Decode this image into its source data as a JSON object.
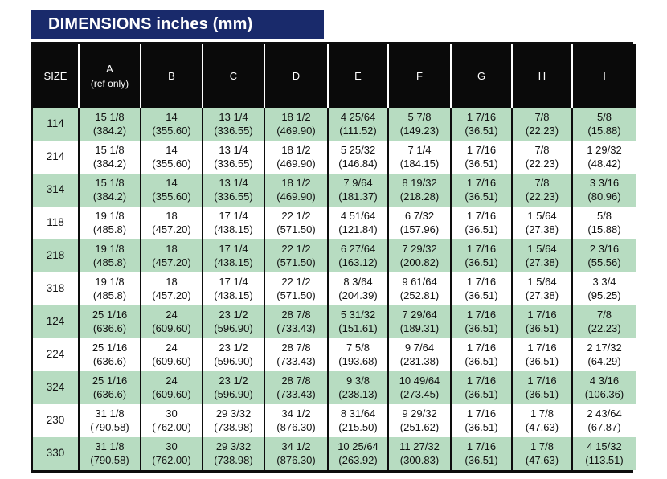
{
  "title": "DIMENSIONS inches (mm)",
  "colors": {
    "title_bar_bg": "#192a6b",
    "title_text": "#ffffff",
    "header_bg": "#0a0a0a",
    "header_text": "#ffffff",
    "row_green": "#b7dcc1",
    "row_white": "#ffffff",
    "border": "#0d0d0d"
  },
  "table": {
    "size_header": "SIZE",
    "columns": [
      {
        "label": "A",
        "sub": "(ref only)"
      },
      {
        "label": "B"
      },
      {
        "label": "C"
      },
      {
        "label": "D"
      },
      {
        "label": "E"
      },
      {
        "label": "F"
      },
      {
        "label": "G"
      },
      {
        "label": "H"
      },
      {
        "label": "I"
      }
    ],
    "rows": [
      {
        "size": "114",
        "shade": "green",
        "cells": [
          {
            "in": "15 1/8",
            "mm": "(384.2)"
          },
          {
            "in": "14",
            "mm": "(355.60)"
          },
          {
            "in": "13 1/4",
            "mm": "(336.55)"
          },
          {
            "in": "18 1/2",
            "mm": "(469.90)"
          },
          {
            "in": "4 25/64",
            "mm": "(111.52)"
          },
          {
            "in": "5 7/8",
            "mm": "(149.23)"
          },
          {
            "in": "1 7/16",
            "mm": "(36.51)"
          },
          {
            "in": "7/8",
            "mm": "(22.23)"
          },
          {
            "in": "5/8",
            "mm": "(15.88)"
          }
        ]
      },
      {
        "size": "214",
        "shade": "white",
        "cells": [
          {
            "in": "15 1/8",
            "mm": "(384.2)"
          },
          {
            "in": "14",
            "mm": "(355.60)"
          },
          {
            "in": "13 1/4",
            "mm": "(336.55)"
          },
          {
            "in": "18 1/2",
            "mm": "(469.90)"
          },
          {
            "in": "5 25/32",
            "mm": "(146.84)"
          },
          {
            "in": "7 1/4",
            "mm": "(184.15)"
          },
          {
            "in": "1 7/16",
            "mm": "(36.51)"
          },
          {
            "in": "7/8",
            "mm": "(22.23)"
          },
          {
            "in": "1 29/32",
            "mm": "(48.42)"
          }
        ]
      },
      {
        "size": "314",
        "shade": "green",
        "cells": [
          {
            "in": "15 1/8",
            "mm": "(384.2)"
          },
          {
            "in": "14",
            "mm": "(355.60)"
          },
          {
            "in": "13 1/4",
            "mm": "(336.55)"
          },
          {
            "in": "18 1/2",
            "mm": "(469.90)"
          },
          {
            "in": "7 9/64",
            "mm": "(181.37)"
          },
          {
            "in": "8 19/32",
            "mm": "(218.28)"
          },
          {
            "in": "1 7/16",
            "mm": "(36.51)"
          },
          {
            "in": "7/8",
            "mm": "(22.23)"
          },
          {
            "in": "3 3/16",
            "mm": "(80.96)"
          }
        ]
      },
      {
        "size": "118",
        "shade": "white",
        "cells": [
          {
            "in": "19 1/8",
            "mm": "(485.8)"
          },
          {
            "in": "18",
            "mm": "(457.20)"
          },
          {
            "in": "17 1/4",
            "mm": "(438.15)"
          },
          {
            "in": "22 1/2",
            "mm": "(571.50)"
          },
          {
            "in": "4 51/64",
            "mm": "(121.84)"
          },
          {
            "in": "6 7/32",
            "mm": "(157.96)"
          },
          {
            "in": "1 7/16",
            "mm": "(36.51)"
          },
          {
            "in": "1 5/64",
            "mm": "(27.38)"
          },
          {
            "in": "5/8",
            "mm": "(15.88)"
          }
        ]
      },
      {
        "size": "218",
        "shade": "green",
        "cells": [
          {
            "in": "19 1/8",
            "mm": "(485.8)"
          },
          {
            "in": "18",
            "mm": "(457.20)"
          },
          {
            "in": "17 1/4",
            "mm": "(438.15)"
          },
          {
            "in": "22 1/2",
            "mm": "(571.50)"
          },
          {
            "in": "6 27/64",
            "mm": "(163.12)"
          },
          {
            "in": "7 29/32",
            "mm": "(200.82)"
          },
          {
            "in": "1 7/16",
            "mm": "(36.51)"
          },
          {
            "in": "1 5/64",
            "mm": "(27.38)"
          },
          {
            "in": "2 3/16",
            "mm": "(55.56)"
          }
        ]
      },
      {
        "size": "318",
        "shade": "white",
        "cells": [
          {
            "in": "19 1/8",
            "mm": "(485.8)"
          },
          {
            "in": "18",
            "mm": "(457.20)"
          },
          {
            "in": "17 1/4",
            "mm": "(438.15)"
          },
          {
            "in": "22 1/2",
            "mm": "(571.50)"
          },
          {
            "in": "8 3/64",
            "mm": "(204.39)"
          },
          {
            "in": "9 61/64",
            "mm": "(252.81)"
          },
          {
            "in": "1 7/16",
            "mm": "(36.51)"
          },
          {
            "in": "1 5/64",
            "mm": "(27.38)"
          },
          {
            "in": "3 3/4",
            "mm": "(95.25)"
          }
        ]
      },
      {
        "size": "124",
        "shade": "green",
        "cells": [
          {
            "in": "25 1/16",
            "mm": "(636.6)"
          },
          {
            "in": "24",
            "mm": "(609.60)"
          },
          {
            "in": "23 1/2",
            "mm": "(596.90)"
          },
          {
            "in": "28 7/8",
            "mm": "(733.43)"
          },
          {
            "in": "5 31/32",
            "mm": "(151.61)"
          },
          {
            "in": "7 29/64",
            "mm": "(189.31)"
          },
          {
            "in": "1 7/16",
            "mm": "(36.51)"
          },
          {
            "in": "1 7/16",
            "mm": "(36.51)"
          },
          {
            "in": "7/8",
            "mm": "(22.23)"
          }
        ]
      },
      {
        "size": "224",
        "shade": "white",
        "cells": [
          {
            "in": "25 1/16",
            "mm": "(636.6)"
          },
          {
            "in": "24",
            "mm": "(609.60)"
          },
          {
            "in": "23 1/2",
            "mm": "(596.90)"
          },
          {
            "in": "28 7/8",
            "mm": "(733.43)"
          },
          {
            "in": "7 5/8",
            "mm": "(193.68)"
          },
          {
            "in": "9 7/64",
            "mm": "(231.38)"
          },
          {
            "in": "1 7/16",
            "mm": "(36.51)"
          },
          {
            "in": "1 7/16",
            "mm": "(36.51)"
          },
          {
            "in": "2 17/32",
            "mm": "(64.29)"
          }
        ]
      },
      {
        "size": "324",
        "shade": "green",
        "cells": [
          {
            "in": "25 1/16",
            "mm": "(636.6)"
          },
          {
            "in": "24",
            "mm": "(609.60)"
          },
          {
            "in": "23 1/2",
            "mm": "(596.90)"
          },
          {
            "in": "28 7/8",
            "mm": "(733.43)"
          },
          {
            "in": "9 3/8",
            "mm": "(238.13)"
          },
          {
            "in": "10 49/64",
            "mm": "(273.45)"
          },
          {
            "in": "1 7/16",
            "mm": "(36.51)"
          },
          {
            "in": "1 7/16",
            "mm": "(36.51)"
          },
          {
            "in": "4 3/16",
            "mm": "(106.36)"
          }
        ]
      },
      {
        "size": "230",
        "shade": "white",
        "cells": [
          {
            "in": "31 1/8",
            "mm": "(790.58)"
          },
          {
            "in": "30",
            "mm": "(762.00)"
          },
          {
            "in": "29 3/32",
            "mm": "(738.98)"
          },
          {
            "in": "34 1/2",
            "mm": "(876.30)"
          },
          {
            "in": "8 31/64",
            "mm": "(215.50)"
          },
          {
            "in": "9 29/32",
            "mm": "(251.62)"
          },
          {
            "in": "1 7/16",
            "mm": "(36.51)"
          },
          {
            "in": "1 7/8",
            "mm": "(47.63)"
          },
          {
            "in": "2 43/64",
            "mm": "(67.87)"
          }
        ]
      },
      {
        "size": "330",
        "shade": "green",
        "cells": [
          {
            "in": "31 1/8",
            "mm": "(790.58)"
          },
          {
            "in": "30",
            "mm": "(762.00)"
          },
          {
            "in": "29 3/32",
            "mm": "(738.98)"
          },
          {
            "in": "34 1/2",
            "mm": "(876.30)"
          },
          {
            "in": "10 25/64",
            "mm": "(263.92)"
          },
          {
            "in": "11 27/32",
            "mm": "(300.83)"
          },
          {
            "in": "1 7/16",
            "mm": "(36.51)"
          },
          {
            "in": "1 7/8",
            "mm": "(47.63)"
          },
          {
            "in": "4 15/32",
            "mm": "(113.51)"
          }
        ]
      }
    ]
  }
}
